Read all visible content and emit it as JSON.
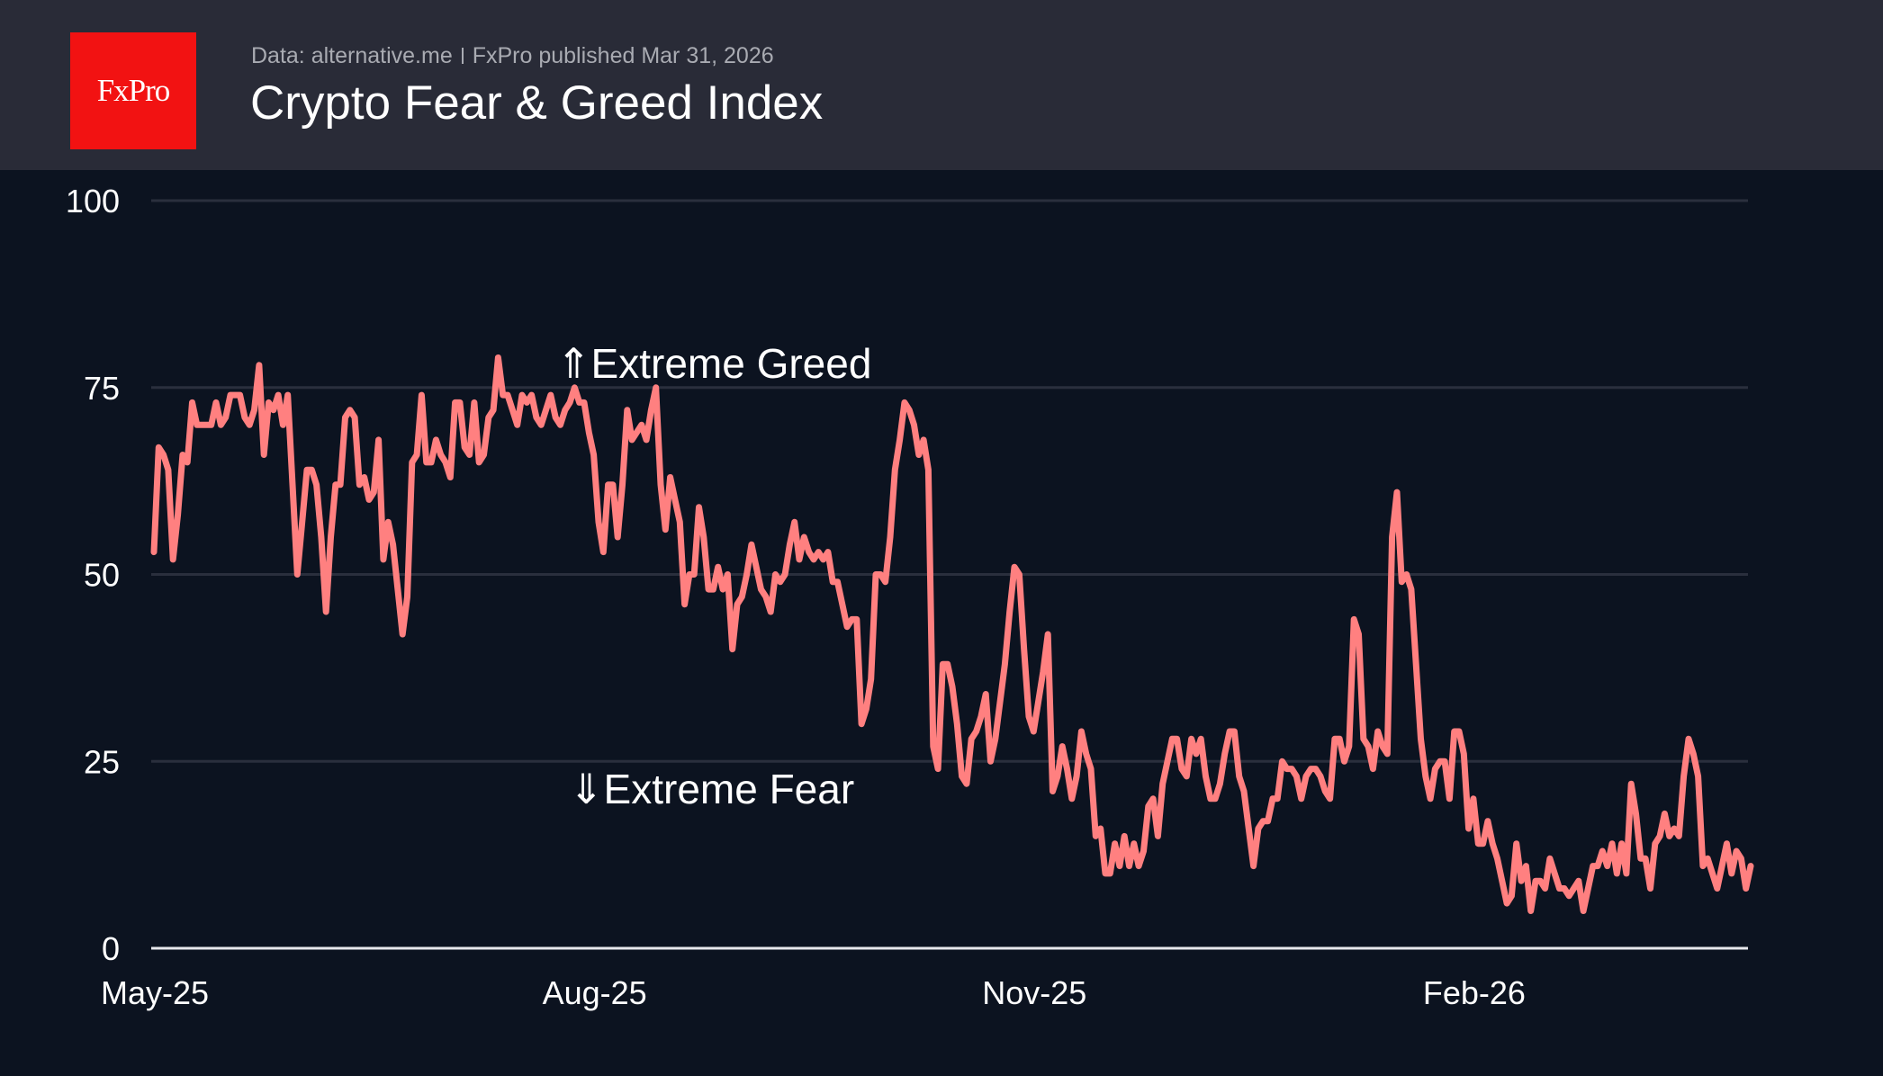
{
  "header": {
    "logo_text": "FxPro",
    "source": "Data: alternative.me",
    "published": "FxPro published Mar 31, 2026",
    "title": "Crypto Fear & Greed Index"
  },
  "chart_data": {
    "type": "line",
    "title": "Crypto Fear & Greed Index",
    "xlabel": "",
    "ylabel": "",
    "ylim": [
      0,
      100
    ],
    "y_ticks": [
      "0",
      "25",
      "50",
      "75",
      "100"
    ],
    "x_ticks": [
      {
        "date": "2025-05-01",
        "label": "May-25"
      },
      {
        "date": "2025-08-01",
        "label": "Aug-25"
      },
      {
        "date": "2025-11-01",
        "label": "Nov-25"
      },
      {
        "date": "2026-02-01",
        "label": "Feb-26"
      }
    ],
    "xlim": [
      "2025-05-01",
      "2026-03-31"
    ],
    "grid": true,
    "line_color": "#ff8080",
    "grid_color": "#2a2f3d",
    "annotations": [
      {
        "text": "⇑Extreme Greed",
        "value": 75
      },
      {
        "text": "⇓Extreme Fear",
        "value": 25
      }
    ],
    "daily_values_by_month": {
      "2025-05": [
        53,
        67,
        66,
        64,
        52,
        58,
        66,
        65,
        73,
        70,
        70,
        70,
        70,
        73,
        70,
        71,
        74,
        74,
        74,
        71,
        70,
        72,
        78,
        66,
        73,
        72,
        74,
        70,
        74,
        62,
        50
      ],
      "2025-06": [
        57,
        64,
        64,
        62,
        55,
        45,
        55,
        62,
        62,
        71,
        72,
        71,
        62,
        63,
        60,
        61,
        68,
        52,
        57,
        54,
        48,
        42,
        47,
        65,
        66,
        74,
        65,
        65,
        68,
        66
      ],
      "2025-07": [
        65,
        63,
        73,
        73,
        67,
        66,
        73,
        65,
        66,
        71,
        72,
        79,
        74,
        74,
        72,
        70,
        74,
        73,
        74,
        71,
        70,
        72,
        74,
        71,
        70,
        72,
        73,
        75,
        73,
        73,
        69
      ],
      "2025-08": [
        66,
        57,
        53,
        62,
        62,
        55,
        62,
        72,
        68,
        69,
        70,
        68,
        72,
        75,
        62,
        56,
        63,
        60,
        57,
        46,
        50,
        50,
        59,
        55,
        48,
        48,
        51,
        48,
        50,
        40,
        46
      ],
      "2025-09": [
        47,
        50,
        54,
        51,
        48,
        47,
        45,
        50,
        49,
        50,
        54,
        57,
        52,
        55,
        53,
        52,
        53,
        52,
        53,
        49,
        49,
        46,
        43,
        44,
        44,
        30,
        32,
        36,
        50,
        50
      ],
      "2025-10": [
        49,
        55,
        64,
        68,
        73,
        72,
        70,
        66,
        68,
        64,
        27,
        24,
        38,
        38,
        35,
        30,
        23,
        22,
        28,
        29,
        31,
        34,
        25,
        28,
        33,
        38,
        45,
        51,
        50,
        40,
        31
      ],
      "2025-11": [
        29,
        33,
        37,
        42,
        21,
        23,
        27,
        24,
        20,
        23,
        29,
        26,
        24,
        15,
        16,
        10,
        10,
        14,
        11,
        15,
        11,
        14,
        11,
        13,
        19,
        20,
        15,
        22,
        25,
        28
      ],
      "2025-12": [
        28,
        24,
        23,
        28,
        26,
        28,
        23,
        20,
        20,
        22,
        26,
        29,
        29,
        23,
        21,
        16,
        11,
        16,
        17,
        17,
        20,
        20,
        25,
        24,
        24,
        23,
        20,
        23,
        24,
        24,
        23
      ],
      "2026-01": [
        21,
        20,
        28,
        28,
        25,
        27,
        44,
        42,
        28,
        27,
        24,
        29,
        27,
        26,
        55,
        61,
        49,
        50,
        48,
        38,
        28,
        23,
        20,
        24,
        25,
        25,
        20,
        29,
        29,
        26,
        16
      ],
      "2026-02": [
        20,
        14,
        14,
        17,
        14,
        12,
        9,
        6,
        7,
        14,
        9,
        11,
        5,
        9,
        9,
        8,
        12,
        10,
        8,
        8,
        7,
        8,
        9,
        5,
        8,
        11,
        11,
        13
      ],
      "2026-03": [
        11,
        14,
        10,
        14,
        10,
        22,
        18,
        12,
        12,
        8,
        14,
        15,
        18,
        15,
        16,
        15,
        23,
        28,
        26,
        23,
        11,
        12,
        10,
        8,
        11,
        14,
        10,
        13,
        12,
        8,
        11
      ]
    }
  }
}
